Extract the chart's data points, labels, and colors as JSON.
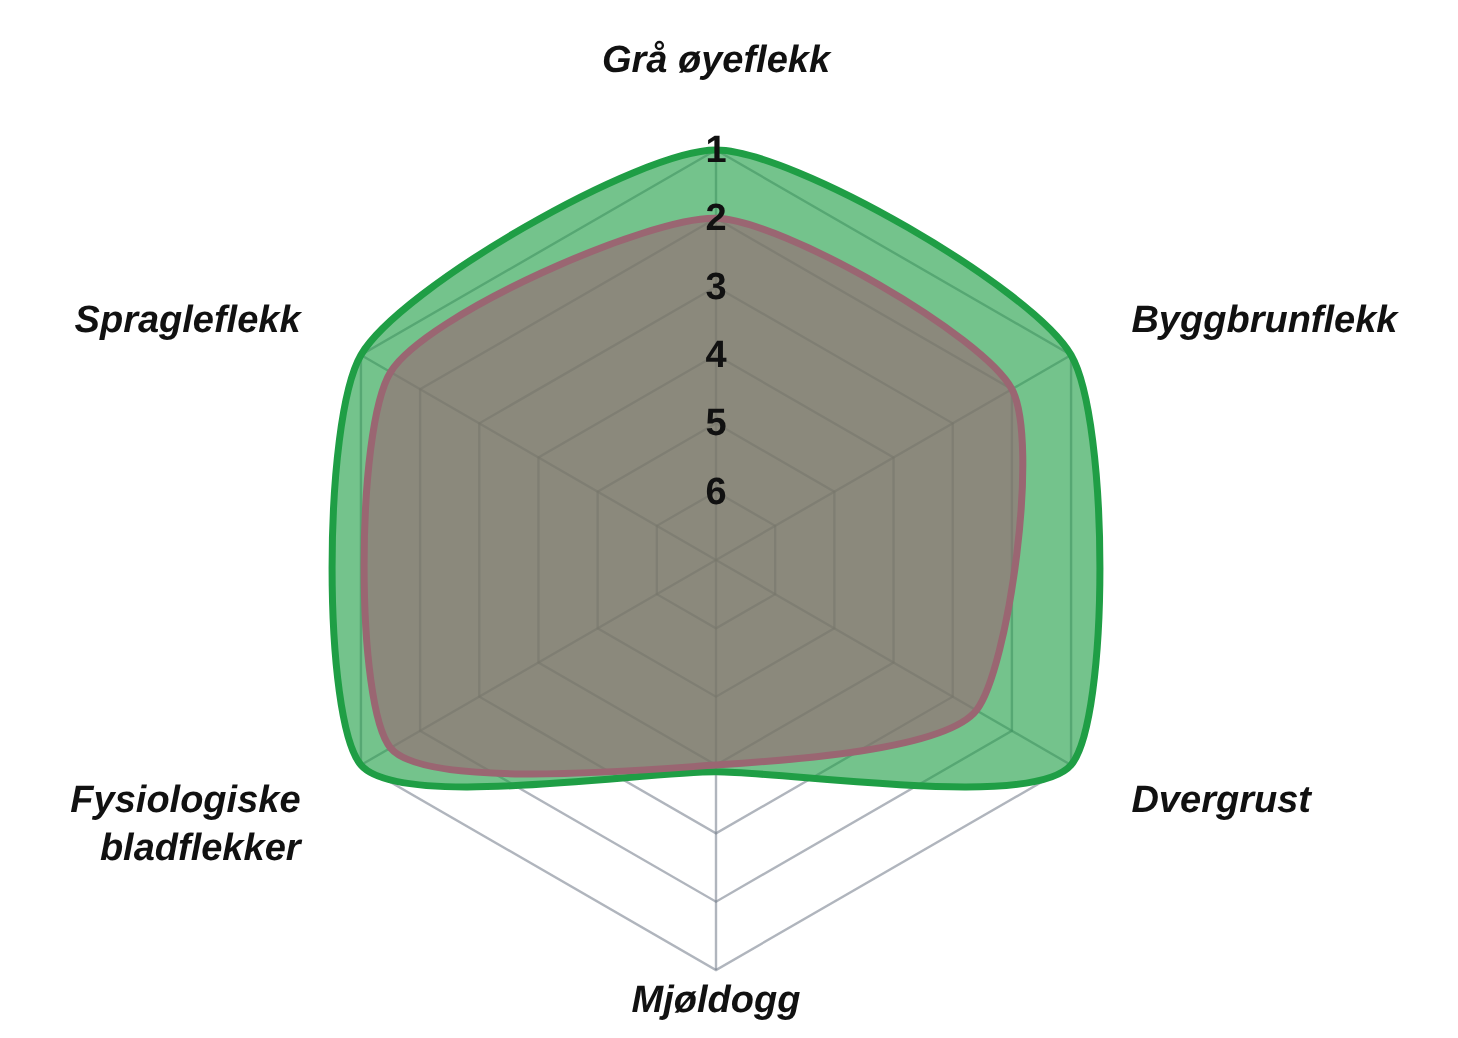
{
  "chart_data": {
    "type": "radar",
    "categories": [
      "Grå øyeflekk",
      "Byggbrunflekk",
      "Dvergrust",
      "Mjøldogg",
      "Fysiologiske\nbladflekker",
      "Spragleflekk"
    ],
    "series": [
      {
        "color": "#1f9e45",
        "values": [
          1,
          1,
          1,
          3.9,
          1,
          1
        ]
      },
      {
        "color": "#9a6672",
        "values": [
          2,
          2,
          2.6,
          4,
          1.5,
          1.5
        ]
      }
    ],
    "ylim": [
      7,
      1
    ],
    "yticks": [
      1,
      2,
      3,
      4,
      5,
      6
    ],
    "grid": true
  }
}
